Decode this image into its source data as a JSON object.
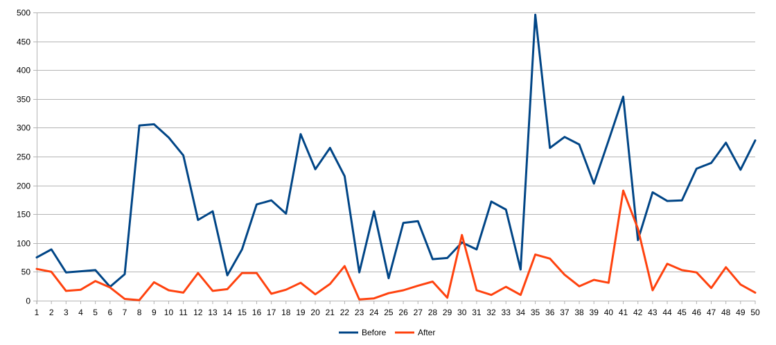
{
  "chart_data": {
    "type": "line",
    "title": "",
    "xlabel": "",
    "ylabel": "",
    "x": [
      1,
      2,
      3,
      4,
      5,
      6,
      7,
      8,
      9,
      10,
      11,
      12,
      13,
      14,
      15,
      16,
      17,
      18,
      19,
      20,
      21,
      22,
      23,
      24,
      25,
      26,
      27,
      28,
      29,
      30,
      31,
      32,
      33,
      34,
      35,
      36,
      37,
      38,
      39,
      40,
      41,
      42,
      43,
      44,
      45,
      46,
      47,
      48,
      49,
      50
    ],
    "ylim": [
      0,
      500
    ],
    "yticks": [
      0,
      50,
      100,
      150,
      200,
      250,
      300,
      350,
      400,
      450,
      500
    ],
    "grid": true,
    "legend_position": "bottom",
    "series": [
      {
        "name": "Before",
        "color": "#004586",
        "values": [
          75,
          89,
          49,
          51,
          53,
          24,
          46,
          304,
          306,
          283,
          252,
          140,
          155,
          44,
          89,
          167,
          174,
          151,
          289,
          228,
          265,
          216,
          49,
          155,
          39,
          135,
          138,
          72,
          74,
          101,
          89,
          172,
          158,
          54,
          496,
          265,
          284,
          271,
          203,
          278,
          354,
          105,
          188,
          173,
          174,
          229,
          239,
          274,
          227,
          278
        ]
      },
      {
        "name": "After",
        "color": "#ff420e",
        "values": [
          55,
          50,
          17,
          19,
          34,
          23,
          3,
          1,
          32,
          18,
          14,
          48,
          17,
          20,
          48,
          48,
          12,
          19,
          31,
          11,
          29,
          60,
          2,
          4,
          13,
          18,
          26,
          33,
          5,
          114,
          18,
          10,
          24,
          10,
          80,
          73,
          45,
          25,
          36,
          31,
          191,
          125,
          18,
          64,
          53,
          49,
          22,
          58,
          28,
          14
        ]
      }
    ]
  }
}
